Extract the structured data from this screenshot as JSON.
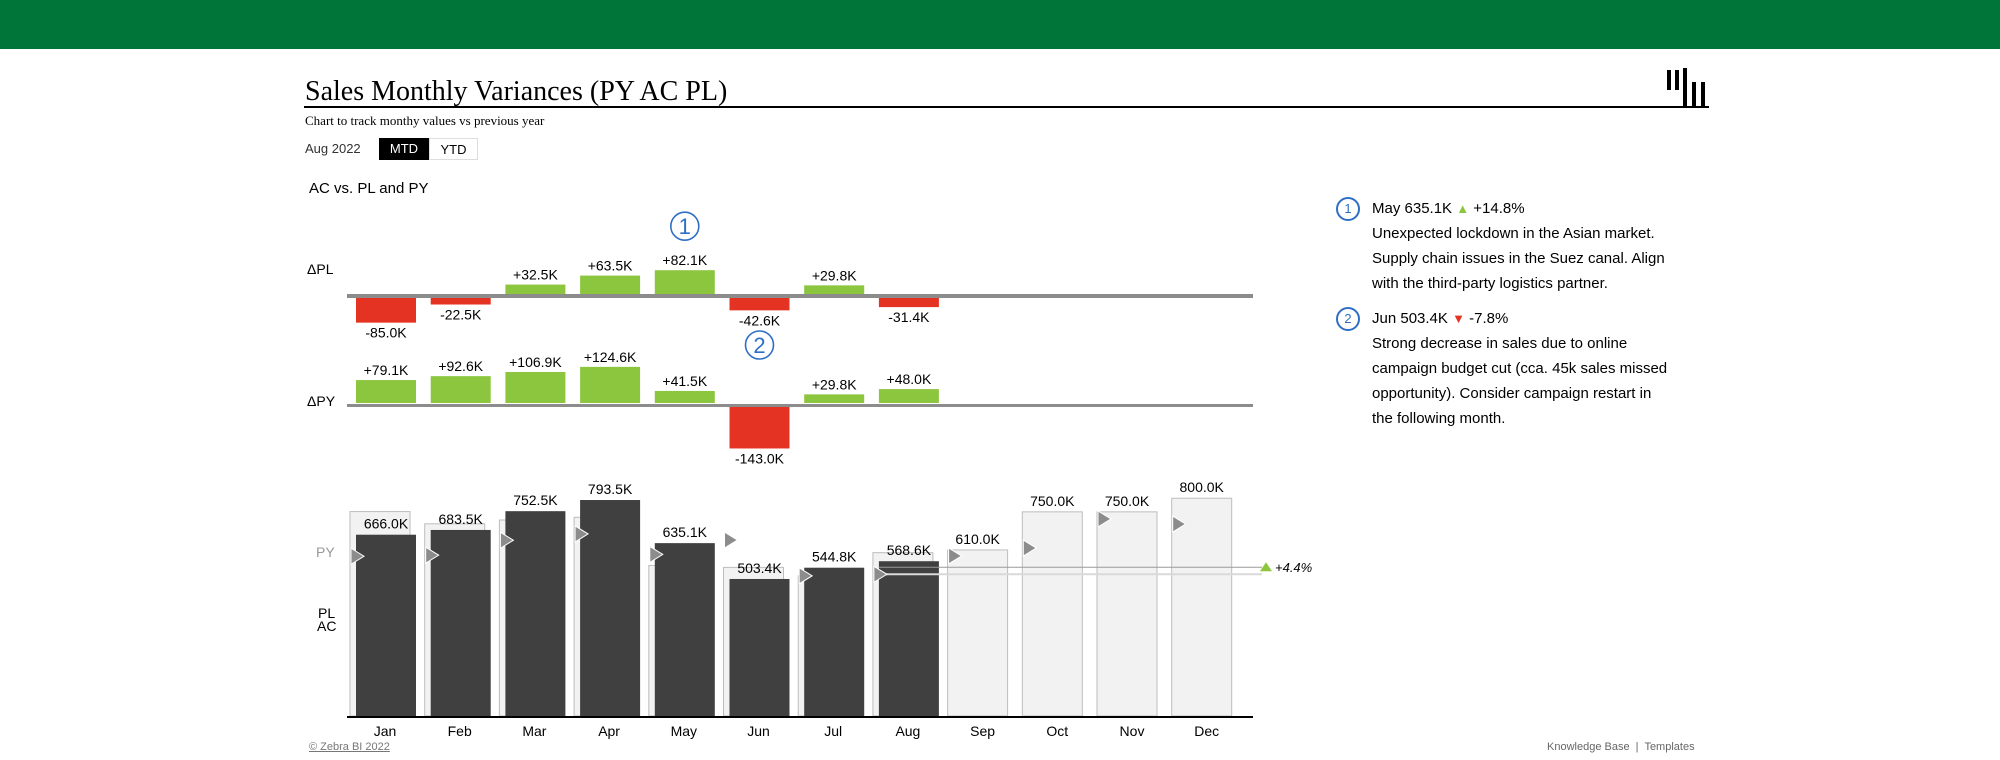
{
  "header": {
    "title": "Sales Monthly Variances (PY AC PL)",
    "subtitle": "Chart to track monthy values vs previous year",
    "period": "Aug 2022",
    "toggle": {
      "mtd": "MTD",
      "ytd": "YTD",
      "selected": "MTD"
    },
    "section_title": "AC vs. PL and PY"
  },
  "colors": {
    "topbar": "#00753a",
    "positive": "#8cc63f",
    "negative": "#e53323",
    "actual": "#404040",
    "plan_fill": "#f2f2f2",
    "py_marker": "#8c8c8c",
    "annotation": "#2e6fc4"
  },
  "chart_data": {
    "type": "bar",
    "categories": [
      "Jan",
      "Feb",
      "Mar",
      "Apr",
      "May",
      "Jun",
      "Jul",
      "Aug",
      "Sep",
      "Oct",
      "Nov",
      "Dec"
    ],
    "row_labels": {
      "delta_pl": "ΔPL",
      "delta_py": "ΔPY",
      "py": "PY",
      "pl": "PL",
      "ac": "AC"
    },
    "series": [
      {
        "name": "AC",
        "values": [
          666.0,
          683.5,
          752.5,
          793.5,
          635.1,
          503.4,
          544.8,
          568.6,
          null,
          null,
          null,
          null
        ]
      },
      {
        "name": "PL",
        "values": [
          751.0,
          706.0,
          720.0,
          730.0,
          553.0,
          546.0,
          515.0,
          600.0,
          610.0,
          750.0,
          750.0,
          800.0
        ]
      },
      {
        "name": "PY",
        "values": [
          586.9,
          590.9,
          645.6,
          668.9,
          593.6,
          646.4,
          515.0,
          520.6,
          588,
          617,
          724,
          705
        ]
      },
      {
        "name": "ΔPL",
        "values": [
          -85.0,
          -22.5,
          32.5,
          63.5,
          82.1,
          -42.6,
          29.8,
          -31.4,
          null,
          null,
          null,
          null
        ]
      },
      {
        "name": "ΔPY",
        "values": [
          79.1,
          92.6,
          106.9,
          124.6,
          41.5,
          -143.0,
          29.8,
          48.0,
          null,
          null,
          null,
          null
        ]
      }
    ],
    "value_labels": [
      "666.0K",
      "683.5K",
      "752.5K",
      "793.5K",
      "635.1K",
      "503.4K",
      "544.8K",
      "568.6K",
      "610.0K",
      "750.0K",
      "750.0K",
      "800.0K"
    ],
    "delta_pl_labels": [
      "-85.0K",
      "-22.5K",
      "+32.5K",
      "+63.5K",
      "+82.1K",
      "-42.6K",
      "+29.8K",
      "-31.4K"
    ],
    "delta_py_labels": [
      "+79.1K",
      "+92.6K",
      "+106.9K",
      "+124.6K",
      "+41.5K",
      "-143.0K",
      "+29.8K",
      "+48.0K"
    ],
    "year_end_variance": "+4.4%",
    "annotations": [
      {
        "marker": "1",
        "month": "May",
        "row": "delta_pl"
      },
      {
        "marker": "2",
        "month": "Jun",
        "row": "delta_py"
      }
    ],
    "unit": "K"
  },
  "notes": [
    {
      "marker": "1",
      "head": "May 635.1K",
      "direction": "up",
      "arrow": "▲",
      "change": "+14.8%",
      "body": "Unexpected lockdown in the Asian market. Supply chain issues in the Suez canal. Align with the third-party logistics partner."
    },
    {
      "marker": "2",
      "head": "Jun 503.4K",
      "direction": "down",
      "arrow": "▼",
      "change": "-7.8%",
      "body": "Strong decrease in sales due to online campaign budget cut (cca. 45k sales missed opportunity). Consider campaign restart in the following month."
    }
  ],
  "footer": {
    "copyright": "© Zebra BI 2022",
    "links": "Knowledge Base  |  Templates"
  }
}
